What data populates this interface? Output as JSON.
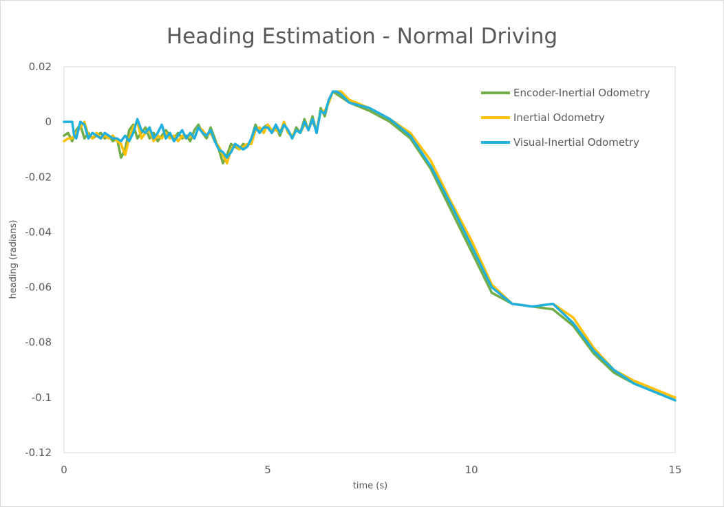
{
  "chart_data": {
    "type": "line",
    "title": "Heading Estimation - Normal Driving",
    "xlabel": "time (s)",
    "ylabel": "heading (radians)",
    "xlim": [
      0,
      15
    ],
    "ylim": [
      -0.12,
      0.02
    ],
    "xticks": [
      "0",
      "5",
      "10",
      "15"
    ],
    "yticks": [
      "0.02",
      "0",
      "-0.02",
      "-0.04",
      "-0.06",
      "-0.08",
      "-0.1",
      "-0.12"
    ],
    "grid": false,
    "legend_position": "top-right",
    "series": [
      {
        "name": "Encoder-Inertial Odometry",
        "color": "#70ad47",
        "x": [
          0,
          0.1,
          0.2,
          0.3,
          0.4,
          0.5,
          0.6,
          0.7,
          0.8,
          0.9,
          1.0,
          1.1,
          1.2,
          1.3,
          1.4,
          1.5,
          1.6,
          1.7,
          1.8,
          1.9,
          2.0,
          2.1,
          2.2,
          2.3,
          2.4,
          2.5,
          2.6,
          2.7,
          2.8,
          2.9,
          3.0,
          3.1,
          3.2,
          3.3,
          3.4,
          3.5,
          3.6,
          3.7,
          3.8,
          3.9,
          4.0,
          4.1,
          4.2,
          4.3,
          4.4,
          4.5,
          4.6,
          4.7,
          4.8,
          4.9,
          5.0,
          5.1,
          5.2,
          5.3,
          5.4,
          5.5,
          5.6,
          5.7,
          5.8,
          5.9,
          6.0,
          6.1,
          6.2,
          6.3,
          6.4,
          6.5,
          6.6,
          6.7,
          6.8,
          7.0,
          7.5,
          8.0,
          8.5,
          9.0,
          9.5,
          10.0,
          10.5,
          11.0,
          11.5,
          12.0,
          12.5,
          13.0,
          13.5,
          14.0,
          14.5,
          15.0
        ],
        "values": [
          -0.005,
          -0.004,
          -0.007,
          -0.003,
          -0.001,
          -0.006,
          -0.004,
          -0.006,
          -0.005,
          -0.004,
          -0.006,
          -0.005,
          -0.007,
          -0.006,
          -0.013,
          -0.01,
          -0.003,
          -0.001,
          -0.006,
          -0.004,
          -0.002,
          -0.006,
          -0.004,
          -0.007,
          -0.005,
          -0.003,
          -0.005,
          -0.006,
          -0.004,
          -0.006,
          -0.005,
          -0.007,
          -0.003,
          -0.001,
          -0.004,
          -0.006,
          -0.002,
          -0.006,
          -0.01,
          -0.015,
          -0.012,
          -0.008,
          -0.009,
          -0.01,
          -0.008,
          -0.009,
          -0.006,
          -0.001,
          -0.004,
          -0.002,
          -0.001,
          -0.004,
          -0.002,
          -0.005,
          -0.001,
          -0.003,
          -0.006,
          -0.002,
          -0.004,
          0.001,
          -0.003,
          0.002,
          -0.004,
          0.005,
          0.002,
          0.008,
          0.011,
          0.01,
          0.009,
          0.007,
          0.004,
          0.0,
          -0.006,
          -0.017,
          -0.032,
          -0.047,
          -0.062,
          -0.066,
          -0.067,
          -0.068,
          -0.074,
          -0.084,
          -0.091,
          -0.095,
          -0.098,
          -0.101
        ]
      },
      {
        "name": "Inertial Odometry",
        "color": "#ffc000",
        "x": [
          0,
          0.1,
          0.2,
          0.3,
          0.4,
          0.5,
          0.6,
          0.7,
          0.8,
          0.9,
          1.0,
          1.1,
          1.2,
          1.3,
          1.4,
          1.5,
          1.6,
          1.7,
          1.8,
          1.9,
          2.0,
          2.1,
          2.2,
          2.3,
          2.4,
          2.5,
          2.6,
          2.7,
          2.8,
          2.9,
          3.0,
          3.1,
          3.2,
          3.3,
          3.4,
          3.5,
          3.6,
          3.7,
          3.8,
          3.9,
          4.0,
          4.1,
          4.2,
          4.3,
          4.4,
          4.5,
          4.6,
          4.7,
          4.8,
          4.9,
          5.0,
          5.1,
          5.2,
          5.3,
          5.4,
          5.5,
          5.6,
          5.7,
          5.8,
          5.9,
          6.0,
          6.1,
          6.2,
          6.3,
          6.4,
          6.5,
          6.6,
          6.7,
          6.8,
          7.0,
          7.5,
          8.0,
          8.5,
          9.0,
          9.5,
          10.0,
          10.5,
          11.0,
          11.5,
          12.0,
          12.5,
          13.0,
          13.5,
          14.0,
          14.5,
          15.0
        ],
        "values": [
          -0.007,
          -0.006,
          -0.006,
          -0.004,
          -0.002,
          0.0,
          -0.005,
          -0.006,
          -0.004,
          -0.006,
          -0.005,
          -0.006,
          -0.005,
          -0.007,
          -0.008,
          -0.012,
          -0.006,
          -0.002,
          0.0,
          -0.006,
          -0.004,
          -0.003,
          -0.007,
          -0.005,
          -0.006,
          -0.004,
          -0.006,
          -0.005,
          -0.007,
          -0.005,
          -0.006,
          -0.005,
          -0.006,
          -0.002,
          -0.003,
          -0.005,
          -0.004,
          -0.007,
          -0.009,
          -0.012,
          -0.015,
          -0.01,
          -0.008,
          -0.01,
          -0.009,
          -0.008,
          -0.008,
          -0.003,
          -0.002,
          -0.004,
          -0.001,
          -0.003,
          -0.003,
          -0.004,
          0.0,
          -0.004,
          -0.005,
          -0.003,
          -0.004,
          -0.001,
          -0.002,
          0.0,
          -0.003,
          0.004,
          0.004,
          0.007,
          0.011,
          0.011,
          0.011,
          0.008,
          0.005,
          0.001,
          -0.004,
          -0.014,
          -0.029,
          -0.043,
          -0.059,
          -0.066,
          -0.067,
          -0.066,
          -0.071,
          -0.082,
          -0.09,
          -0.094,
          -0.097,
          -0.1
        ]
      },
      {
        "name": "Visual-Inertial Odometry",
        "color": "#1fb0e0",
        "x": [
          0,
          0.1,
          0.2,
          0.25,
          0.3,
          0.4,
          0.5,
          0.6,
          0.7,
          0.8,
          0.9,
          1.0,
          1.1,
          1.2,
          1.3,
          1.4,
          1.5,
          1.6,
          1.7,
          1.8,
          1.9,
          2.0,
          2.1,
          2.2,
          2.3,
          2.4,
          2.5,
          2.6,
          2.7,
          2.8,
          2.9,
          3.0,
          3.1,
          3.2,
          3.3,
          3.4,
          3.5,
          3.6,
          3.7,
          3.8,
          3.9,
          4.0,
          4.1,
          4.2,
          4.3,
          4.4,
          4.5,
          4.6,
          4.7,
          4.8,
          4.9,
          5.0,
          5.1,
          5.2,
          5.3,
          5.4,
          5.5,
          5.6,
          5.7,
          5.8,
          5.9,
          6.0,
          6.1,
          6.2,
          6.3,
          6.4,
          6.5,
          6.6,
          6.7,
          6.8,
          7.0,
          7.5,
          8.0,
          8.5,
          9.0,
          9.5,
          10.0,
          10.5,
          11.0,
          11.5,
          12.0,
          12.5,
          13.0,
          13.5,
          14.0,
          14.5,
          15.0
        ],
        "values": [
          0.0,
          0.0,
          0.0,
          -0.005,
          -0.006,
          0.0,
          -0.001,
          -0.006,
          -0.004,
          -0.005,
          -0.006,
          -0.004,
          -0.005,
          -0.006,
          -0.006,
          -0.007,
          -0.005,
          -0.007,
          -0.004,
          0.001,
          -0.003,
          -0.004,
          -0.002,
          -0.006,
          -0.004,
          -0.001,
          -0.006,
          -0.004,
          -0.007,
          -0.005,
          -0.003,
          -0.006,
          -0.004,
          -0.006,
          -0.002,
          -0.004,
          -0.005,
          -0.003,
          -0.007,
          -0.01,
          -0.011,
          -0.013,
          -0.011,
          -0.008,
          -0.009,
          -0.01,
          -0.009,
          -0.006,
          -0.002,
          -0.004,
          -0.002,
          -0.002,
          -0.004,
          -0.001,
          -0.004,
          -0.001,
          -0.003,
          -0.006,
          -0.003,
          -0.004,
          0.0,
          -0.003,
          0.001,
          -0.004,
          0.004,
          0.003,
          0.008,
          0.011,
          0.011,
          0.01,
          0.007,
          0.005,
          0.001,
          -0.005,
          -0.016,
          -0.03,
          -0.045,
          -0.06,
          -0.066,
          -0.067,
          -0.066,
          -0.073,
          -0.083,
          -0.09,
          -0.095,
          -0.098,
          -0.101
        ]
      }
    ]
  }
}
